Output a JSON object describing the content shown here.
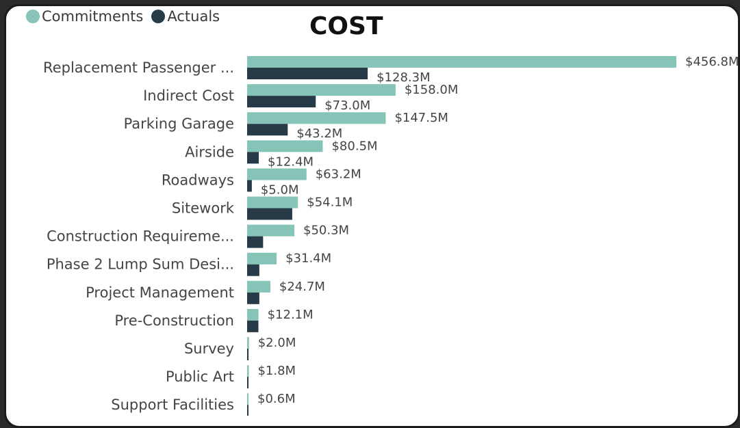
{
  "chart_data": {
    "type": "bar",
    "orientation": "horizontal",
    "title": "COST",
    "legend_position": "top-left",
    "categories": [
      "Replacement Passenger ...",
      "Indirect Cost",
      "Parking Garage",
      "Airside",
      "Roadways",
      "Sitework",
      "Construction Requireme...",
      "Phase 2 Lump Sum Desi...",
      "Project Management",
      "Pre-Construction",
      "Survey",
      "Public Art",
      "Support Facilities"
    ],
    "series": [
      {
        "name": "Commitments",
        "color": "#85c4b7",
        "values": [
          456.8,
          158.0,
          147.5,
          80.5,
          63.2,
          54.1,
          50.3,
          31.4,
          24.7,
          12.1,
          2.0,
          1.8,
          0.6
        ],
        "labels": [
          "$456.8M",
          "$158.0M",
          "$147.5M",
          "$80.5M",
          "$63.2M",
          "$54.1M",
          "$50.3M",
          "$31.4M",
          "$24.7M",
          "$12.1M",
          "$2.0M",
          "$1.8M",
          "$0.6M"
        ]
      },
      {
        "name": "Actuals",
        "color": "#263a47",
        "values": [
          128.3,
          73.0,
          43.2,
          12.4,
          5.0,
          48.0,
          17.0,
          13.0,
          13.0,
          12.0,
          1.5,
          1.2,
          0.4
        ],
        "labels": [
          "$128.3M",
          "$73.0M",
          "$43.2M",
          "$12.4M",
          "$5.0M",
          "",
          "",
          "",
          "",
          "",
          "",
          "",
          ""
        ]
      }
    ],
    "xlim": [
      0,
      456.8
    ],
    "grid": false
  }
}
